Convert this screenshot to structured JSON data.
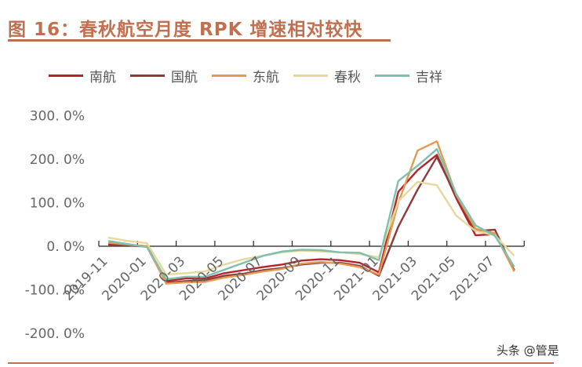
{
  "figure": {
    "title": "图 16：春秋航空月度 RPK 增速相对较快",
    "watermark": "头条 @管是"
  },
  "legend": [
    {
      "name": "南航",
      "color": "#b5222a"
    },
    {
      "name": "国航",
      "color": "#8b3a3a"
    },
    {
      "name": "东航",
      "color": "#e39a52"
    },
    {
      "name": "春秋",
      "color": "#e6d89c"
    },
    {
      "name": "吉祥",
      "color": "#7fbfae"
    }
  ],
  "y_axis": {
    "ticks": [
      "300. 0%",
      "200. 0%",
      "100. 0%",
      "0. 0%",
      "-100. 0%",
      "-200. 0%"
    ],
    "values": [
      300,
      200,
      100,
      0,
      -100,
      -200
    ]
  },
  "x_axis": {
    "labels": [
      "2019-11",
      "2020-01",
      "2020-03",
      "2020-05",
      "2020-07",
      "2020-09",
      "2020-11",
      "2021-01",
      "2021-03",
      "2021-05",
      "2021-07"
    ]
  },
  "chart_data": {
    "type": "line",
    "title": "春秋航空月度 RPK 增速相对较快",
    "xlabel": "",
    "ylabel": "",
    "ylim": [
      -200,
      300
    ],
    "legend_position": "top",
    "grid": false,
    "x": [
      "2019-11",
      "2019-12",
      "2020-01",
      "2020-02",
      "2020-03",
      "2020-04",
      "2020-05",
      "2020-06",
      "2020-07",
      "2020-08",
      "2020-09",
      "2020-10",
      "2020-11",
      "2020-12",
      "2021-01",
      "2021-02",
      "2021-03",
      "2021-04",
      "2021-05",
      "2021-06",
      "2021-07",
      "2021-08"
    ],
    "series": [
      {
        "name": "南航",
        "color": "#b5222a",
        "values": [
          5,
          3,
          0,
          -80,
          -74,
          -74,
          -62,
          -55,
          -48,
          -42,
          -33,
          -30,
          -32,
          -38,
          -60,
          125,
          175,
          210,
          110,
          25,
          28,
          -55
        ]
      },
      {
        "name": "国航",
        "color": "#8b3a3a",
        "values": [
          2,
          2,
          -1,
          -84,
          -80,
          -78,
          -68,
          -63,
          -55,
          -50,
          -42,
          -38,
          -38,
          -45,
          -68,
          45,
          130,
          205,
          115,
          35,
          38,
          -57
        ]
      },
      {
        "name": "东航",
        "color": "#e39a52",
        "values": [
          8,
          4,
          0,
          -86,
          -83,
          -82,
          -72,
          -66,
          -58,
          -52,
          -40,
          -36,
          -40,
          -48,
          -65,
          100,
          220,
          241,
          118,
          40,
          30,
          -58
        ]
      },
      {
        "name": "春秋",
        "color": "#e6d89c",
        "values": [
          20,
          12,
          7,
          -65,
          -62,
          -58,
          -42,
          -30,
          -22,
          -14,
          -10,
          -12,
          -14,
          -18,
          -25,
          103,
          148,
          140,
          70,
          35,
          25,
          -22
        ]
      },
      {
        "name": "吉祥",
        "color": "#7fbfae",
        "values": [
          12,
          5,
          -2,
          -76,
          -70,
          -70,
          -54,
          -38,
          -22,
          -12,
          -8,
          -9,
          -14,
          -15,
          -32,
          150,
          185,
          223,
          120,
          48,
          24,
          -47
        ]
      }
    ]
  }
}
